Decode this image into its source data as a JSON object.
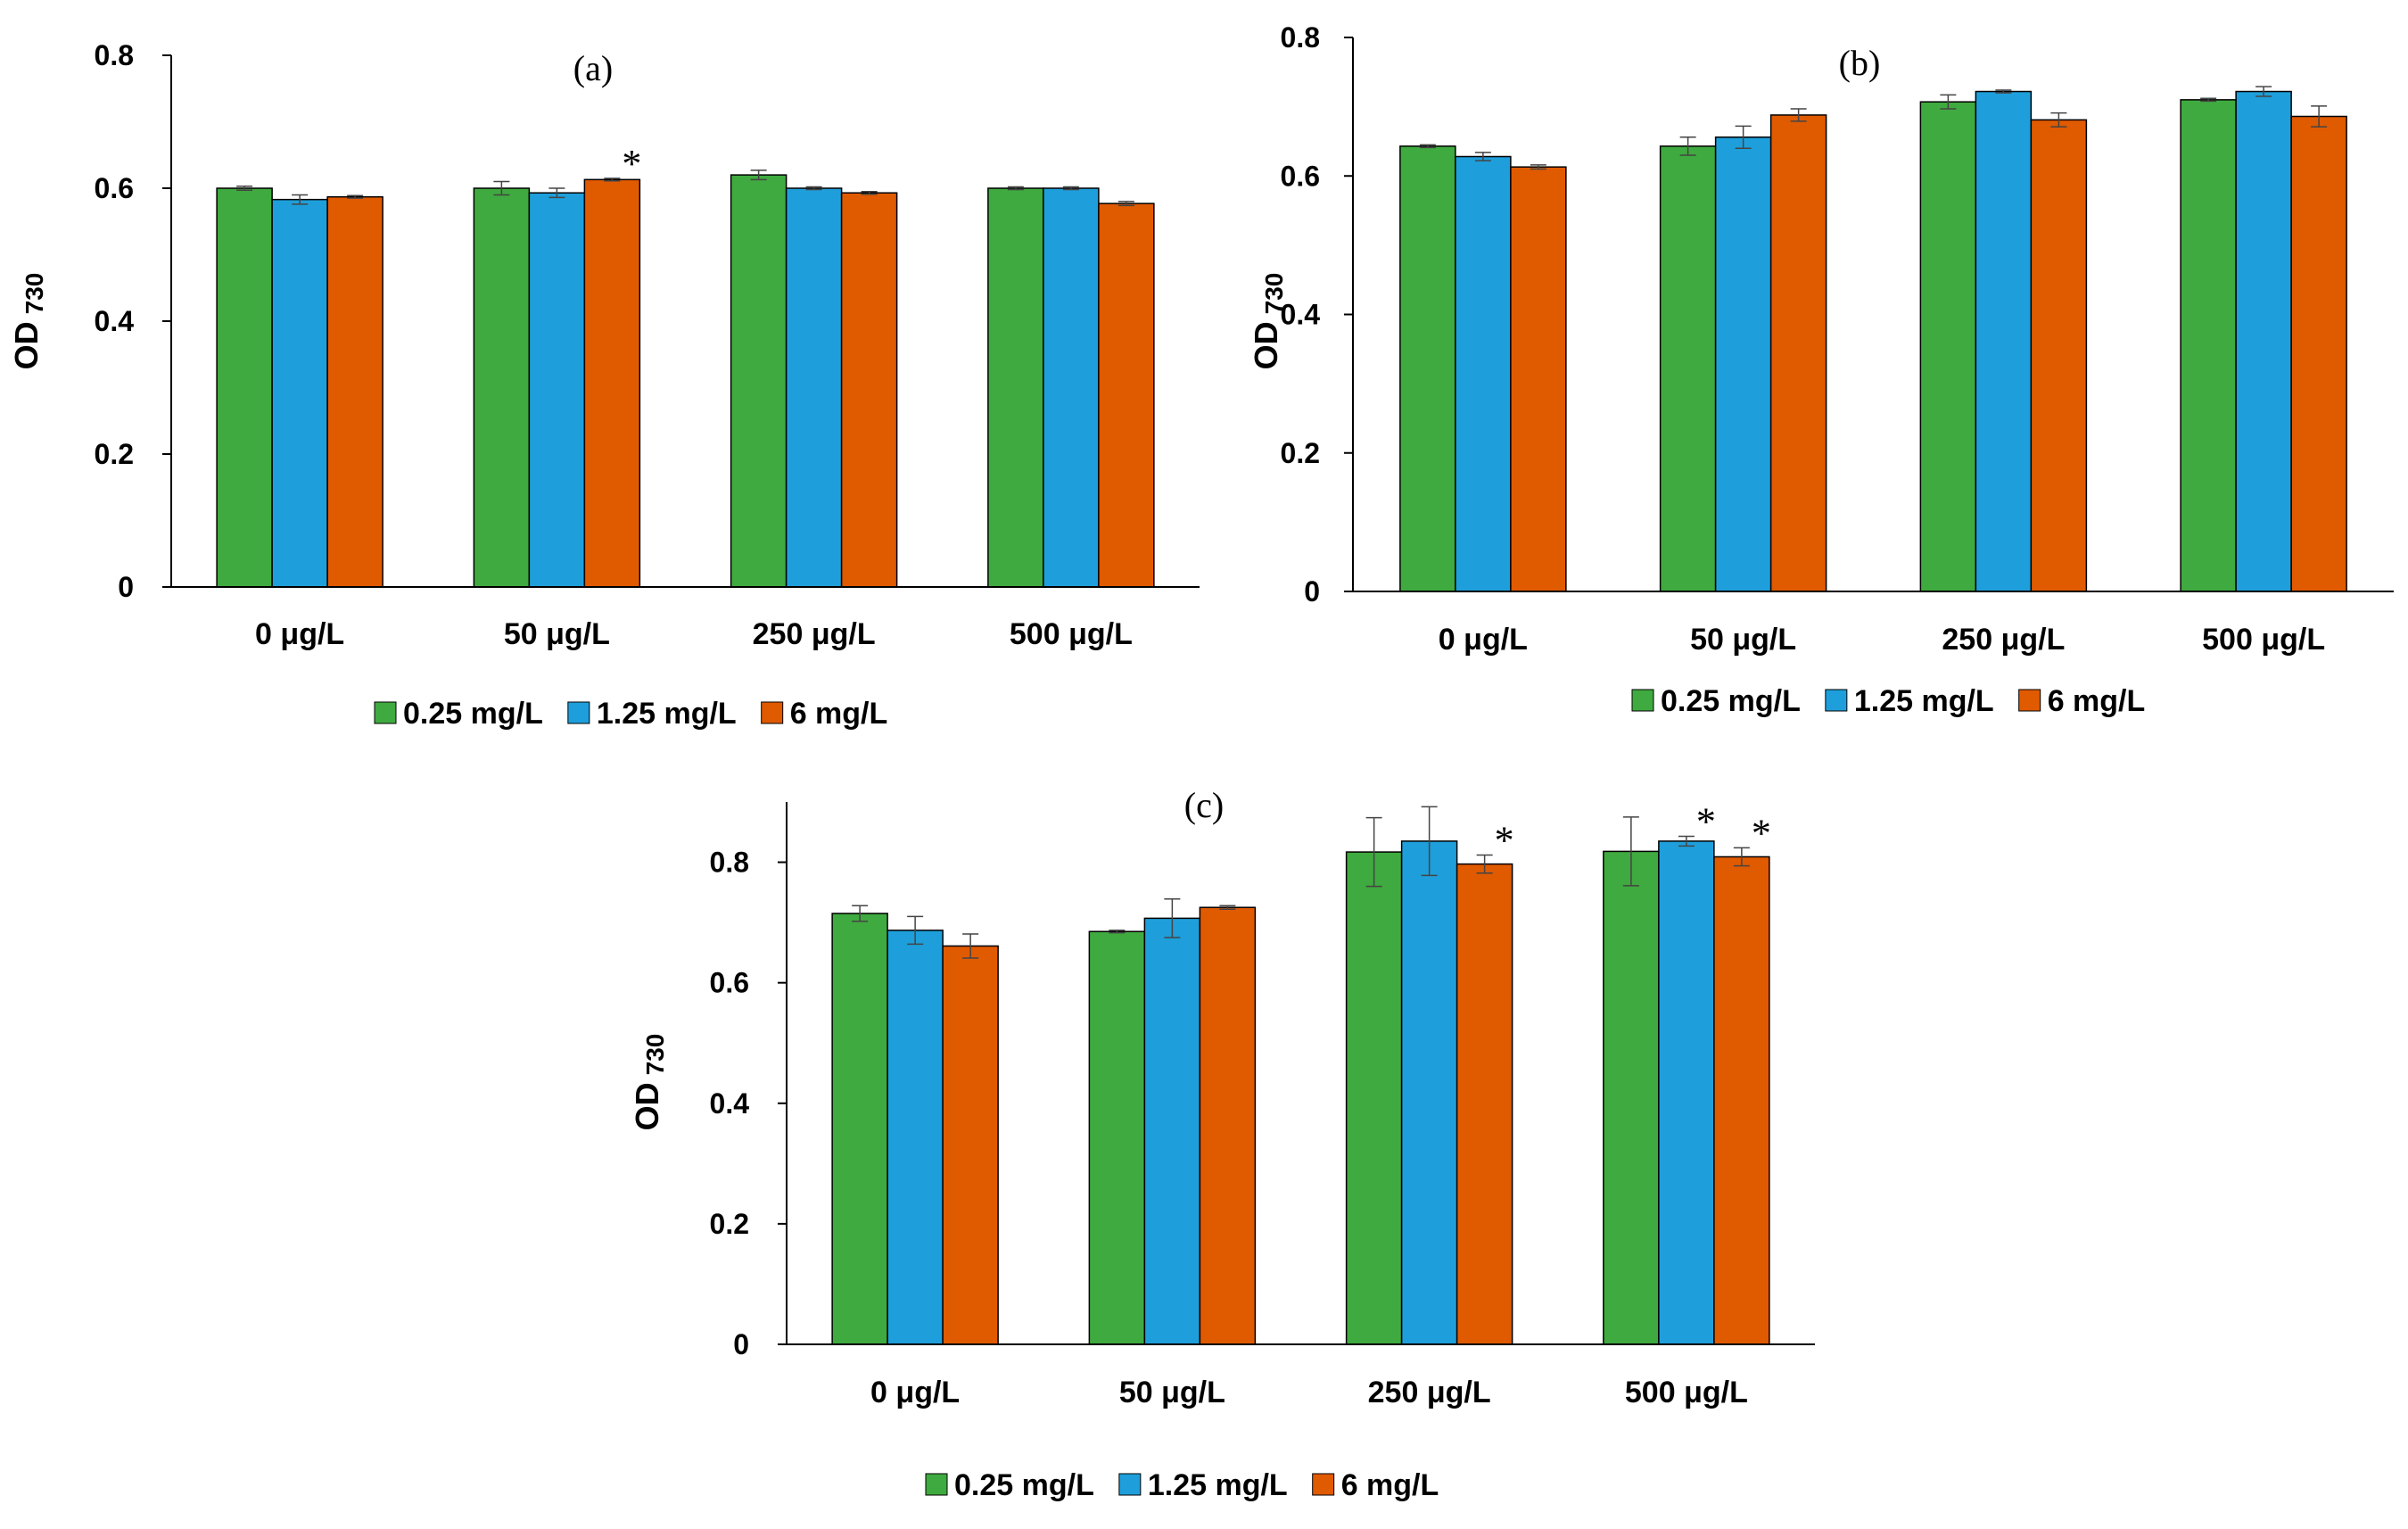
{
  "chart_data": [
    {
      "type": "bar",
      "title": "(a)",
      "ylabel": "OD",
      "ylabel_sub": "730",
      "xlabel": "",
      "ylim": [
        0,
        0.8
      ],
      "yticks": [
        0,
        0.2,
        0.4,
        0.6,
        0.8
      ],
      "ytick_labels": [
        "0",
        "0.2",
        "0.4",
        "0.6",
        "0.8"
      ],
      "grid": false,
      "legend": "bottom",
      "categories": [
        "0 μg/L",
        "50 μg/L",
        "250 μg/L",
        "500 μg/L"
      ],
      "series": [
        {
          "name": "0.25 mg/L",
          "color": "#3FAA3F",
          "values": [
            0.6,
            0.6,
            0.62,
            0.6
          ],
          "errors": [
            0.003,
            0.01,
            0.007,
            0.002
          ]
        },
        {
          "name": "1.25 mg/L",
          "color": "#1E9FDB",
          "values": [
            0.583,
            0.593,
            0.6,
            0.6
          ],
          "errors": [
            0.007,
            0.007,
            0.002,
            0.002
          ]
        },
        {
          "name": "6 mg/L",
          "color": "#E05A00",
          "values": [
            0.587,
            0.613,
            0.593,
            0.577
          ],
          "errors": [
            0.002,
            0.002,
            0.002,
            0.003
          ]
        }
      ],
      "annotations": [
        {
          "category": 1,
          "series": 2,
          "text": "*"
        }
      ]
    },
    {
      "type": "bar",
      "title": "(b)",
      "ylabel": "OD",
      "ylabel_sub": "730",
      "xlabel": "",
      "ylim": [
        0,
        0.8
      ],
      "yticks": [
        0,
        0.2,
        0.4,
        0.6,
        0.8
      ],
      "ytick_labels": [
        "0",
        "0.2",
        "0.4",
        "0.6",
        "0.8"
      ],
      "grid": false,
      "legend": "bottom",
      "categories": [
        "0 μg/L",
        "50 μg/L",
        "250 μg/L",
        "500 μg/L"
      ],
      "series": [
        {
          "name": "0.25 mg/L",
          "color": "#3FAA3F",
          "values": [
            0.643,
            0.643,
            0.707,
            0.71
          ],
          "errors": [
            0.002,
            0.013,
            0.01,
            0.002
          ]
        },
        {
          "name": "1.25 mg/L",
          "color": "#1E9FDB",
          "values": [
            0.628,
            0.656,
            0.722,
            0.722
          ],
          "errors": [
            0.006,
            0.016,
            0.002,
            0.007
          ]
        },
        {
          "name": "6 mg/L",
          "color": "#E05A00",
          "values": [
            0.613,
            0.688,
            0.681,
            0.686
          ],
          "errors": [
            0.003,
            0.009,
            0.01,
            0.015
          ]
        }
      ],
      "annotations": []
    },
    {
      "type": "bar",
      "title": "(c)",
      "ylabel": "OD",
      "ylabel_sub": "730",
      "xlabel": "",
      "ylim": [
        0,
        0.9
      ],
      "yticks": [
        0,
        0.2,
        0.4,
        0.6,
        0.8
      ],
      "ytick_labels": [
        "0",
        "0.2",
        "0.4",
        "0.6",
        "0.8"
      ],
      "grid": false,
      "legend": "bottom",
      "categories": [
        "0 μg/L",
        "50 μg/L",
        "250 μg/L",
        "500 μg/L"
      ],
      "series": [
        {
          "name": "0.25 mg/L",
          "color": "#3FAA3F",
          "values": [
            0.715,
            0.685,
            0.817,
            0.818
          ],
          "errors": [
            0.013,
            0.002,
            0.057,
            0.057
          ]
        },
        {
          "name": "1.25 mg/L",
          "color": "#1E9FDB",
          "values": [
            0.687,
            0.707,
            0.835,
            0.835
          ],
          "errors": [
            0.023,
            0.032,
            0.057,
            0.008
          ]
        },
        {
          "name": "6 mg/L",
          "color": "#E05A00",
          "values": [
            0.661,
            0.725,
            0.797,
            0.809
          ],
          "errors": [
            0.02,
            0.003,
            0.015,
            0.015
          ]
        }
      ],
      "annotations": [
        {
          "category": 2,
          "series": 2,
          "text": "*"
        },
        {
          "category": 3,
          "series": 1,
          "text": "*"
        },
        {
          "category": 3,
          "series": 2,
          "text": "*"
        }
      ]
    }
  ]
}
